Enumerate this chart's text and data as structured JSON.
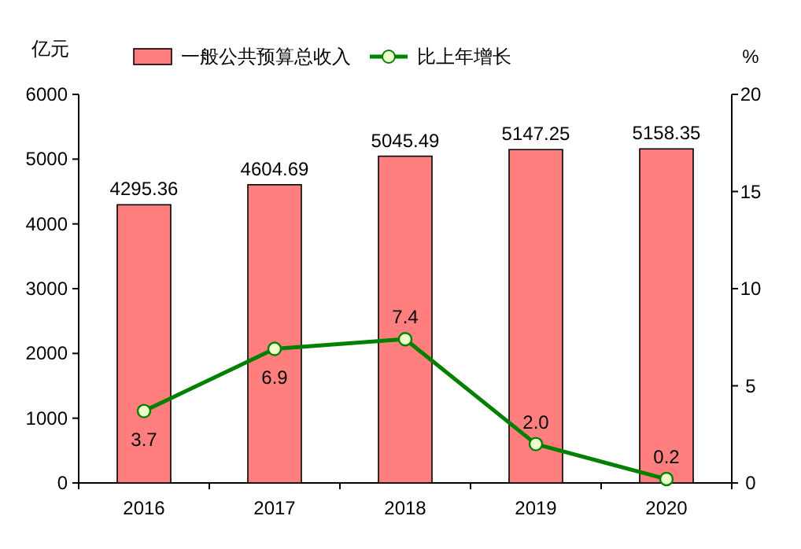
{
  "chart_data": {
    "type": "bar",
    "ylabel": "亿元",
    "y2label": "%",
    "categories": [
      "2016",
      "2017",
      "2018",
      "2019",
      "2020"
    ],
    "series": [
      {
        "name": "一般公共预算总收入",
        "color": "#ff7f7f",
        "values": [
          4295.36,
          4604.69,
          5045.49,
          5147.25,
          5158.35
        ],
        "value_labels": [
          "4295.36",
          "4604.69",
          "5045.49",
          "5147.25",
          "5158.35"
        ]
      },
      {
        "name": "比上年增长",
        "type": "line",
        "axis": "y2",
        "color": "#008000",
        "marker": "circle",
        "values": [
          3.7,
          6.9,
          7.4,
          2.0,
          0.2
        ],
        "value_labels": [
          "3.7",
          "6.9",
          "7.4",
          "2.0",
          "0.2"
        ]
      }
    ],
    "ylim": [
      0,
      6000
    ],
    "yticks": [
      0,
      1000,
      2000,
      3000,
      4000,
      5000,
      6000
    ],
    "y2lim": [
      0,
      20
    ],
    "y2ticks": [
      0,
      5,
      10,
      15,
      20
    ],
    "legend": "top",
    "grid": false
  }
}
